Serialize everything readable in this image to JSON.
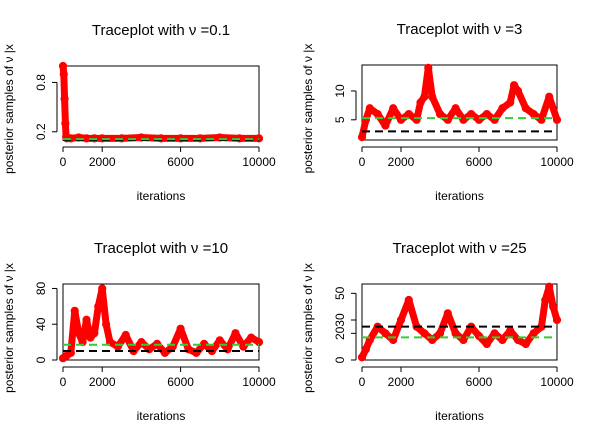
{
  "colors": {
    "trace": "#ff0000",
    "true_value": "#000000",
    "posterior_mean": "#33cc33",
    "axis": "#000000"
  },
  "chart_data": [
    {
      "type": "scatter",
      "title": "Traceplot with ν =0.1",
      "xlabel": "iterations",
      "ylabel": "posterior samples of ν |x",
      "xlim": [
        0,
        10000
      ],
      "ylim": [
        0.1,
        1.0
      ],
      "xticks": [
        0,
        2000,
        6000,
        10000
      ],
      "yticks": [
        0.2,
        0.8
      ],
      "true_value": 0.1,
      "posterior_mean": 0.11,
      "series": [
        {
          "x": [
            0,
            40,
            80,
            120,
            160,
            200,
            400,
            800,
            1200,
            1600,
            2000,
            3000,
            4000,
            5000,
            6000,
            7000,
            8000,
            9000,
            10000
          ],
          "y": [
            1.0,
            0.9,
            0.6,
            0.3,
            0.14,
            0.12,
            0.12,
            0.13,
            0.12,
            0.12,
            0.12,
            0.12,
            0.13,
            0.12,
            0.12,
            0.12,
            0.13,
            0.12,
            0.12
          ]
        }
      ]
    },
    {
      "type": "scatter",
      "title": "Traceplot with ν =3",
      "xlabel": "iterations",
      "ylabel": "posterior samples of ν |x",
      "xlim": [
        0,
        10000
      ],
      "ylim": [
        1.5,
        14.5
      ],
      "xticks": [
        0,
        2000,
        6000,
        10000
      ],
      "yticks": [
        5,
        10
      ],
      "true_value": 3,
      "posterior_mean": 5.3,
      "series": [
        {
          "x": [
            0,
            200,
            400,
            800,
            1200,
            1600,
            2000,
            2400,
            2800,
            3000,
            3200,
            3400,
            3600,
            4000,
            4400,
            4800,
            5200,
            5600,
            6000,
            6400,
            6800,
            7200,
            7600,
            7800,
            8000,
            8400,
            8800,
            9200,
            9600,
            10000
          ],
          "y": [
            2,
            5,
            7,
            6,
            4,
            7,
            5,
            6,
            5,
            8,
            9,
            14,
            9,
            6,
            5,
            7,
            5,
            6,
            5,
            6,
            5,
            7,
            8,
            11,
            10,
            7,
            6,
            5,
            9,
            5
          ]
        }
      ]
    },
    {
      "type": "scatter",
      "title": "Traceplot with ν =10",
      "xlabel": "iterations",
      "ylabel": "posterior samples of ν |x",
      "xlim": [
        0,
        10000
      ],
      "ylim": [
        0,
        85
      ],
      "xticks": [
        0,
        2000,
        6000,
        10000
      ],
      "yticks": [
        0,
        40,
        80
      ],
      "true_value": 10,
      "posterior_mean": 17,
      "series": [
        {
          "x": [
            0,
            200,
            400,
            600,
            800,
            1000,
            1200,
            1400,
            1600,
            1800,
            2000,
            2200,
            2400,
            2800,
            3200,
            3600,
            4000,
            4400,
            4800,
            5200,
            5600,
            6000,
            6400,
            6800,
            7200,
            7600,
            8000,
            8400,
            8800,
            9200,
            9600,
            10000
          ],
          "y": [
            2,
            5,
            8,
            55,
            30,
            20,
            45,
            25,
            30,
            60,
            80,
            40,
            20,
            15,
            28,
            10,
            20,
            12,
            18,
            8,
            15,
            35,
            12,
            8,
            18,
            10,
            22,
            12,
            30,
            15,
            25,
            20
          ]
        }
      ]
    },
    {
      "type": "scatter",
      "title": "Traceplot with ν =25",
      "xlabel": "iterations",
      "ylabel": "posterior samples of ν |x",
      "xlim": [
        0,
        10000
      ],
      "ylim": [
        0,
        57
      ],
      "xticks": [
        0,
        2000,
        6000,
        10000
      ],
      "yticks": [
        0,
        20,
        30,
        50
      ],
      "true_value": 25,
      "posterior_mean": 17,
      "series": [
        {
          "x": [
            0,
            200,
            400,
            800,
            1200,
            1600,
            2000,
            2400,
            2800,
            3200,
            3600,
            4000,
            4400,
            4800,
            5200,
            5600,
            6000,
            6400,
            6800,
            7200,
            7600,
            8000,
            8400,
            8800,
            9200,
            9400,
            9600,
            9800,
            10000
          ],
          "y": [
            2,
            8,
            15,
            25,
            20,
            15,
            30,
            45,
            25,
            20,
            15,
            20,
            35,
            20,
            15,
            25,
            18,
            12,
            20,
            15,
            22,
            15,
            12,
            20,
            25,
            45,
            55,
            40,
            30
          ]
        }
      ]
    }
  ]
}
